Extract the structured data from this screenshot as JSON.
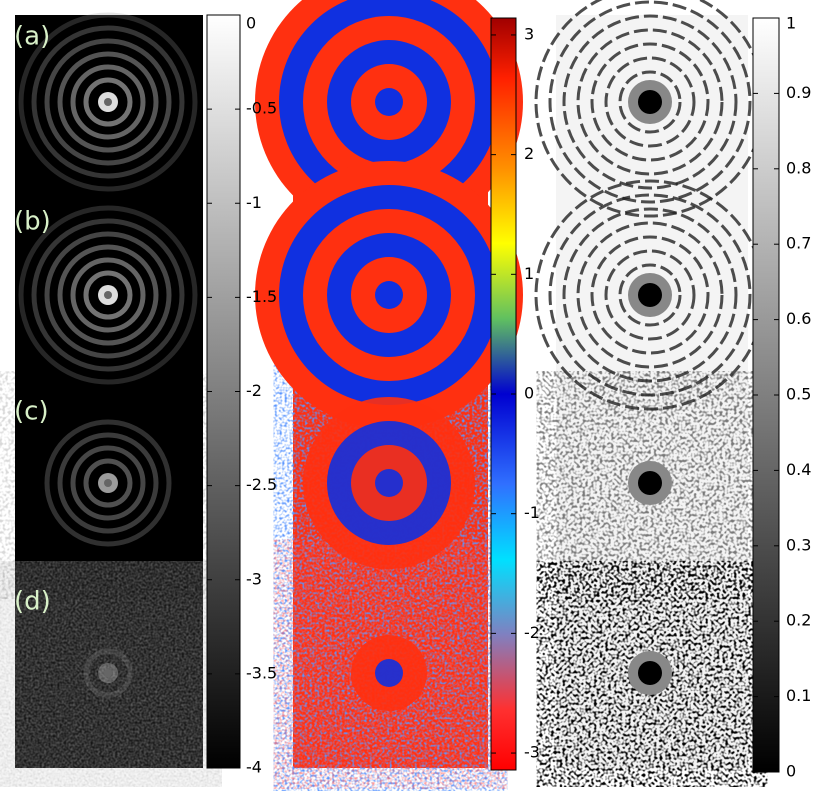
{
  "panel_labels": [
    "(a)",
    "(b)",
    "(c)",
    "(d)"
  ],
  "colorbars": [
    {
      "lim": [
        -4,
        0
      ],
      "ticks": [
        0,
        -0.5,
        -1,
        -1.5,
        -2,
        -2.5,
        -3,
        -3.5,
        -4
      ]
    },
    {
      "lim": [
        -3.1416,
        3.1416
      ],
      "ticks": [
        3,
        2,
        1,
        0,
        -1,
        -2,
        -3
      ]
    },
    {
      "lim": [
        0,
        1
      ],
      "ticks": [
        1,
        0.9,
        0.8,
        0.7,
        0.6,
        0.5,
        0.4,
        0.3,
        0.2,
        0.1,
        0
      ]
    }
  ]
}
